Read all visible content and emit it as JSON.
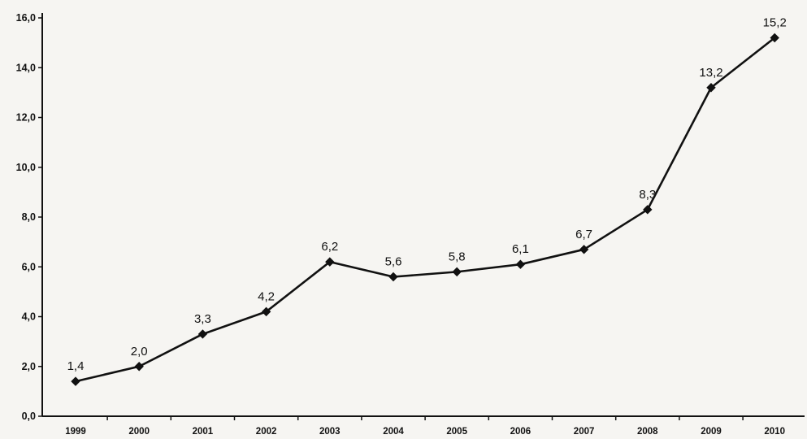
{
  "chart_data": {
    "type": "line",
    "title": "",
    "xlabel": "",
    "ylabel": "",
    "categories": [
      "1999",
      "2000",
      "2001",
      "2002",
      "2003",
      "2004",
      "2005",
      "2006",
      "2007",
      "2008",
      "2009",
      "2010"
    ],
    "series": [
      {
        "values": [
          1.4,
          2.0,
          3.3,
          4.2,
          6.2,
          5.6,
          5.8,
          6.1,
          6.7,
          8.3,
          13.2,
          15.2
        ],
        "data_labels": [
          "1,4",
          "2,0",
          "3,3",
          "4,2",
          "6,2",
          "5,6",
          "5,8",
          "6,1",
          "6,7",
          "8,3",
          "13,2",
          "15,2"
        ],
        "color": "#111111",
        "marker": "diamond"
      }
    ],
    "y_ticks": [
      0,
      2,
      4,
      6,
      8,
      10,
      12,
      14,
      16
    ],
    "y_tick_labels": [
      "0,0",
      "2,0",
      "4,0",
      "6,0",
      "8,0",
      "10,0",
      "12,0",
      "14,0",
      "16,0"
    ],
    "ylim": [
      0,
      16
    ],
    "grid": false,
    "legend": "none"
  }
}
